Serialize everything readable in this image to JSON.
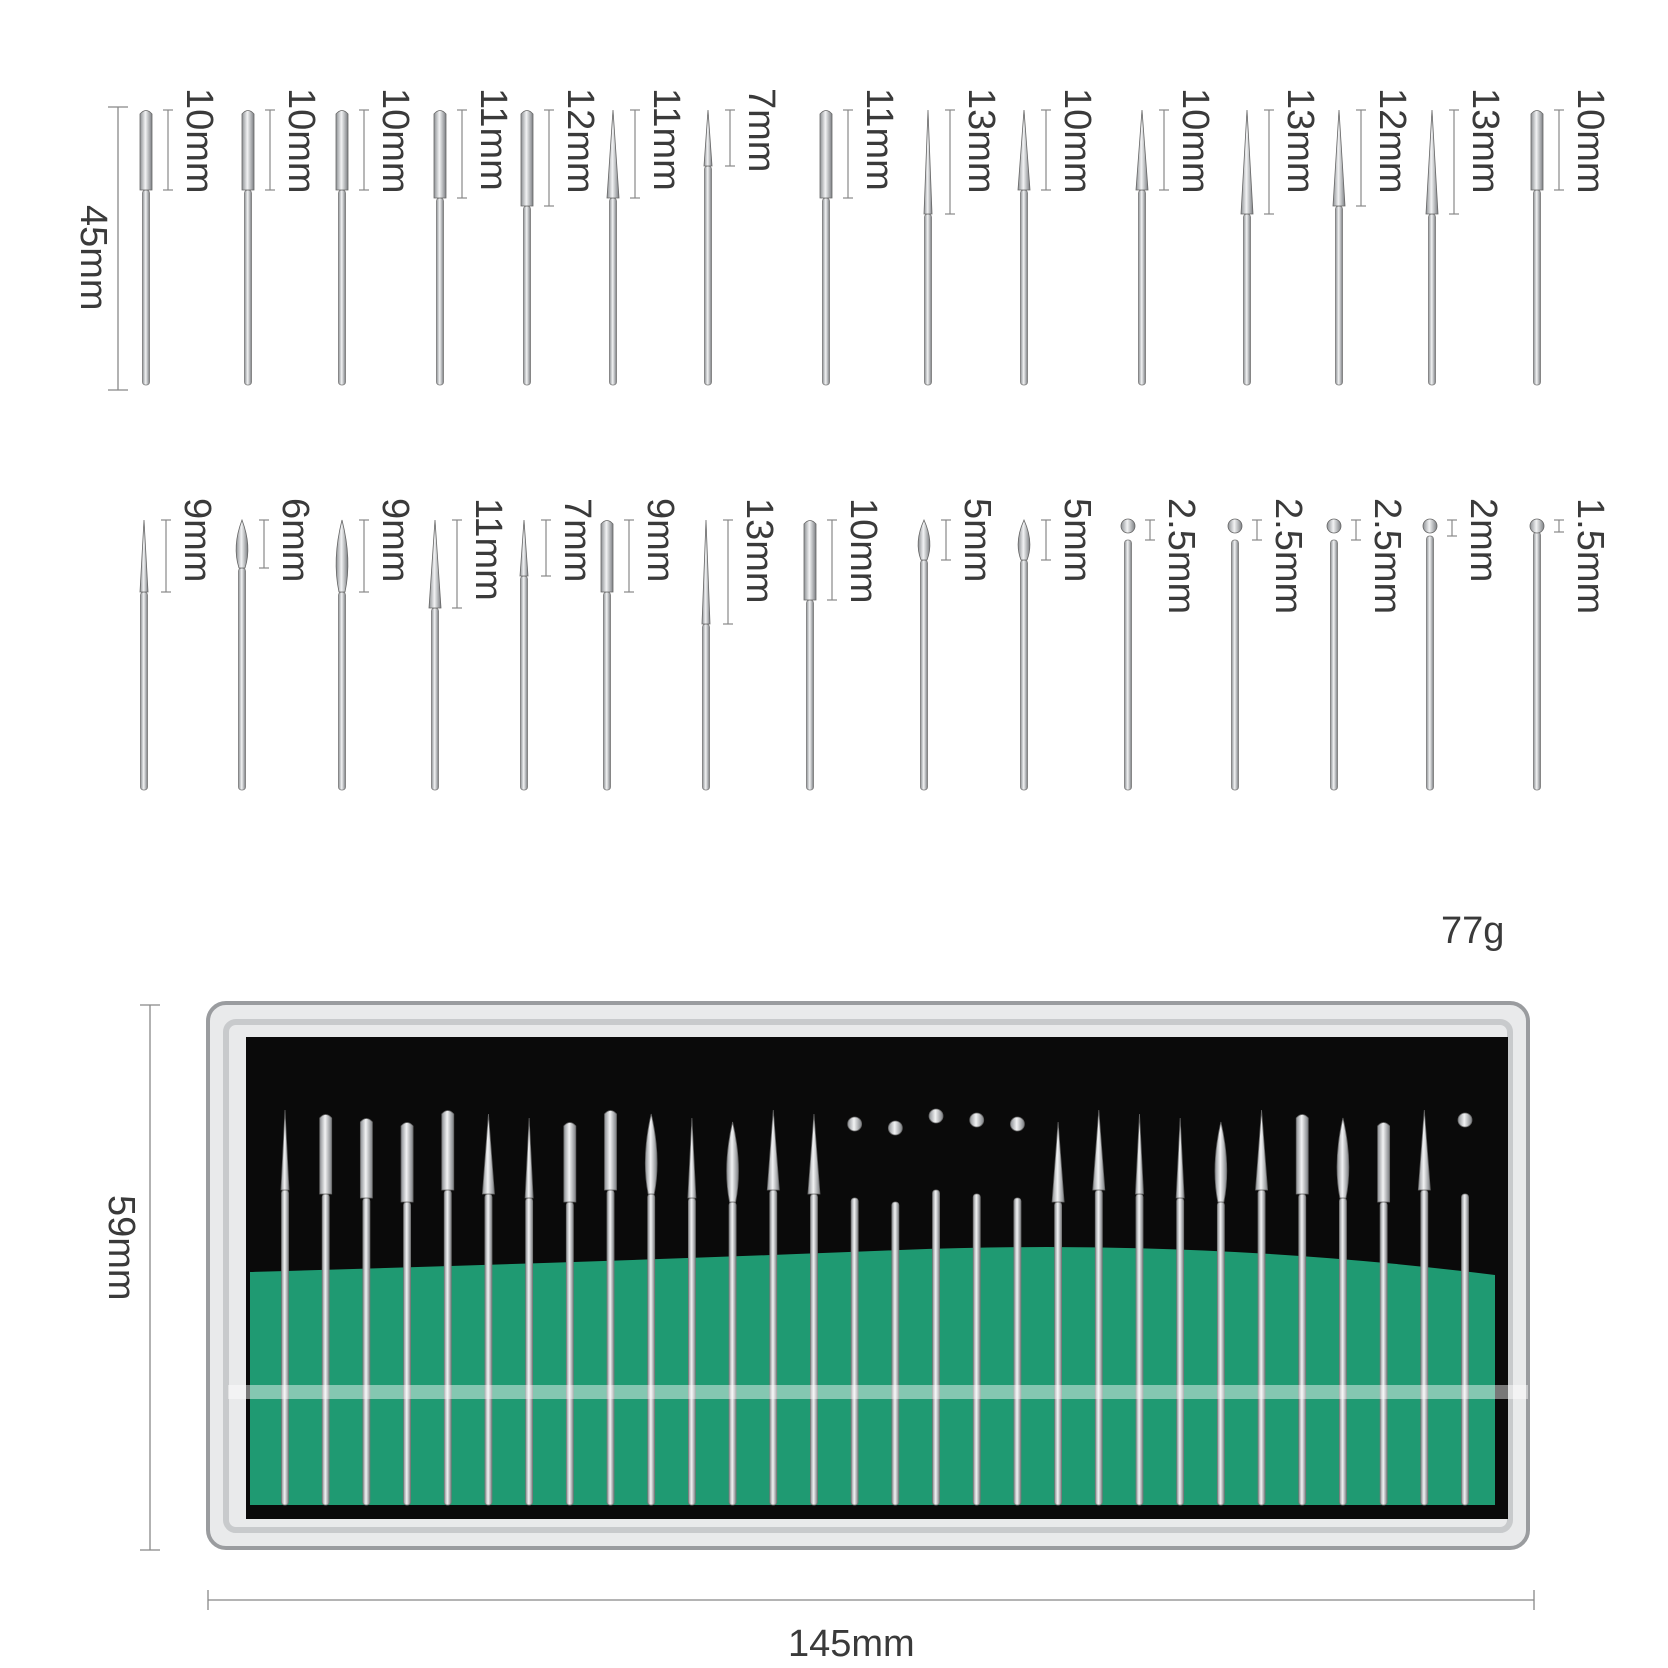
{
  "row1": {
    "overall_length": "45mm",
    "bits": [
      {
        "head_length": "10mm",
        "head": "cylinder"
      },
      {
        "head_length": "10mm",
        "head": "cylinder"
      },
      {
        "head_length": "10mm",
        "head": "cylinder"
      },
      {
        "head_length": "11mm",
        "head": "cylinder"
      },
      {
        "head_length": "12mm",
        "head": "cylinder"
      },
      {
        "head_length": "11mm",
        "head": "taper"
      },
      {
        "head_length": "7mm",
        "head": "needle"
      },
      {
        "head_length": "11mm",
        "head": "cylinder"
      },
      {
        "head_length": "13mm",
        "head": "needle"
      },
      {
        "head_length": "10mm",
        "head": "taper"
      },
      {
        "head_length": "10mm",
        "head": "taper"
      },
      {
        "head_length": "13mm",
        "head": "taper"
      },
      {
        "head_length": "12mm",
        "head": "taper"
      },
      {
        "head_length": "13mm",
        "head": "taper"
      },
      {
        "head_length": "10mm",
        "head": "cylinder"
      }
    ]
  },
  "row2": {
    "bits": [
      {
        "head_length": "9mm",
        "head": "needle"
      },
      {
        "head_length": "6mm",
        "head": "flame"
      },
      {
        "head_length": "9mm",
        "head": "flame"
      },
      {
        "head_length": "11mm",
        "head": "taper"
      },
      {
        "head_length": "7mm",
        "head": "needle"
      },
      {
        "head_length": "9mm",
        "head": "cylinder"
      },
      {
        "head_length": "13mm",
        "head": "needle"
      },
      {
        "head_length": "10mm",
        "head": "cylinder"
      },
      {
        "head_length": "5mm",
        "head": "flame"
      },
      {
        "head_length": "5mm",
        "head": "flame"
      },
      {
        "head_length": "2.5mm",
        "head": "ball"
      },
      {
        "head_length": "2.5mm",
        "head": "ball"
      },
      {
        "head_length": "2.5mm",
        "head": "ball"
      },
      {
        "head_length": "2mm",
        "head": "ball"
      },
      {
        "head_length": "1.5mm",
        "head": "ball"
      }
    ]
  },
  "case": {
    "weight": "77g",
    "height": "59mm",
    "width": "145mm",
    "bit_count": 30,
    "colors": {
      "frame": "#c8cacc",
      "interior": "#0a0a0a",
      "foam": "#1f9a72",
      "metal": "#d8dadc"
    }
  }
}
